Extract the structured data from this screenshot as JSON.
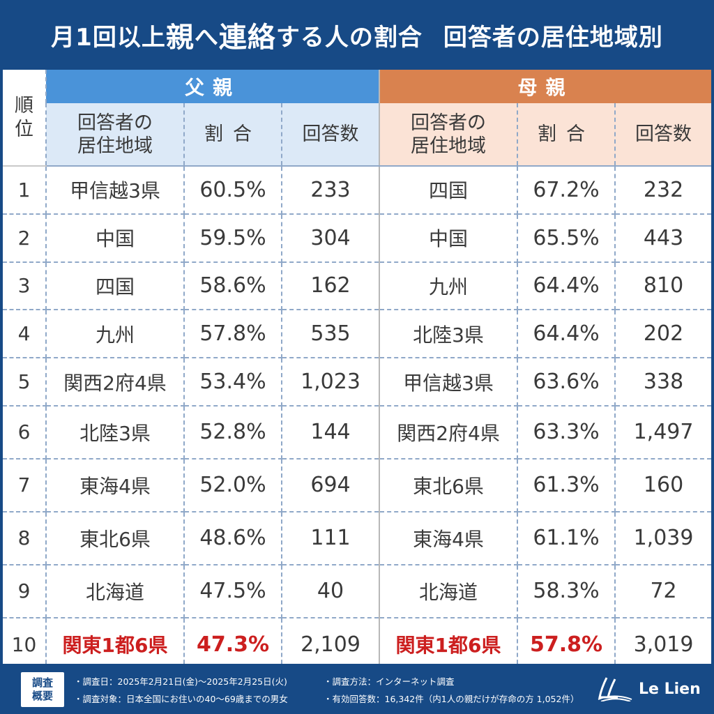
{
  "title": {
    "part1": "月1回以上",
    "part2": "親",
    "part3": "へ",
    "part4": "連絡",
    "part5": "する人の割合",
    "part6": "回答者の居住地域別"
  },
  "chart_data": {
    "type": "table",
    "headers": {
      "rank": [
        "順",
        "位"
      ],
      "father_group": "父親",
      "mother_group": "母親",
      "region": [
        "回答者の",
        "居住地域"
      ],
      "ratio": "割合",
      "count": "回答数"
    },
    "rows": [
      {
        "rank": "1",
        "father": {
          "region": "甲信越3県",
          "ratio": "60.5%",
          "count": "233"
        },
        "mother": {
          "region": "四国",
          "ratio": "67.2%",
          "count": "232"
        }
      },
      {
        "rank": "2",
        "father": {
          "region": "中国",
          "ratio": "59.5%",
          "count": "304"
        },
        "mother": {
          "region": "中国",
          "ratio": "65.5%",
          "count": "443"
        }
      },
      {
        "rank": "3",
        "father": {
          "region": "四国",
          "ratio": "58.6%",
          "count": "162"
        },
        "mother": {
          "region": "九州",
          "ratio": "64.4%",
          "count": "810"
        }
      },
      {
        "rank": "4",
        "father": {
          "region": "九州",
          "ratio": "57.8%",
          "count": "535"
        },
        "mother": {
          "region": "北陸3県",
          "ratio": "64.4%",
          "count": "202"
        }
      },
      {
        "rank": "5",
        "father": {
          "region": "関西2府4県",
          "ratio": "53.4%",
          "count": "1,023"
        },
        "mother": {
          "region": "甲信越3県",
          "ratio": "63.6%",
          "count": "338"
        }
      },
      {
        "rank": "6",
        "father": {
          "region": "北陸3県",
          "ratio": "52.8%",
          "count": "144"
        },
        "mother": {
          "region": "関西2府4県",
          "ratio": "63.3%",
          "count": "1,497"
        }
      },
      {
        "rank": "7",
        "father": {
          "region": "東海4県",
          "ratio": "52.0%",
          "count": "694"
        },
        "mother": {
          "region": "東北6県",
          "ratio": "61.3%",
          "count": "160"
        }
      },
      {
        "rank": "8",
        "father": {
          "region": "東北6県",
          "ratio": "48.6%",
          "count": "111"
        },
        "mother": {
          "region": "東海4県",
          "ratio": "61.1%",
          "count": "1,039"
        }
      },
      {
        "rank": "9",
        "father": {
          "region": "北海道",
          "ratio": "47.5%",
          "count": "40"
        },
        "mother": {
          "region": "北海道",
          "ratio": "58.3%",
          "count": "72"
        }
      },
      {
        "rank": "10",
        "father": {
          "region": "関東1都6県",
          "ratio": "47.3%",
          "count": "2,109"
        },
        "mother": {
          "region": "関東1都6県",
          "ratio": "57.8%",
          "count": "3,019"
        }
      }
    ],
    "highlight_rank": "10",
    "highlight_color": "#cc1f1f"
  },
  "footer": {
    "badge": [
      "調査",
      "概要"
    ],
    "date": "・調査日：2025年2月21日(金)～2025年2月25日(火)",
    "target": "・調査対象：日本全国にお住いの40～69歳までの男女",
    "method": "・調査方法：インターネット調査",
    "valid": "・有効回答数：16,342件（内1人の親だけが存命の方 1,052件）",
    "logo": "Le Lien"
  },
  "colors": {
    "background": "#174a86",
    "father": "#4a93d9",
    "father_light": "#dce9f7",
    "mother": "#d9824f",
    "mother_light": "#fbe3d6"
  }
}
